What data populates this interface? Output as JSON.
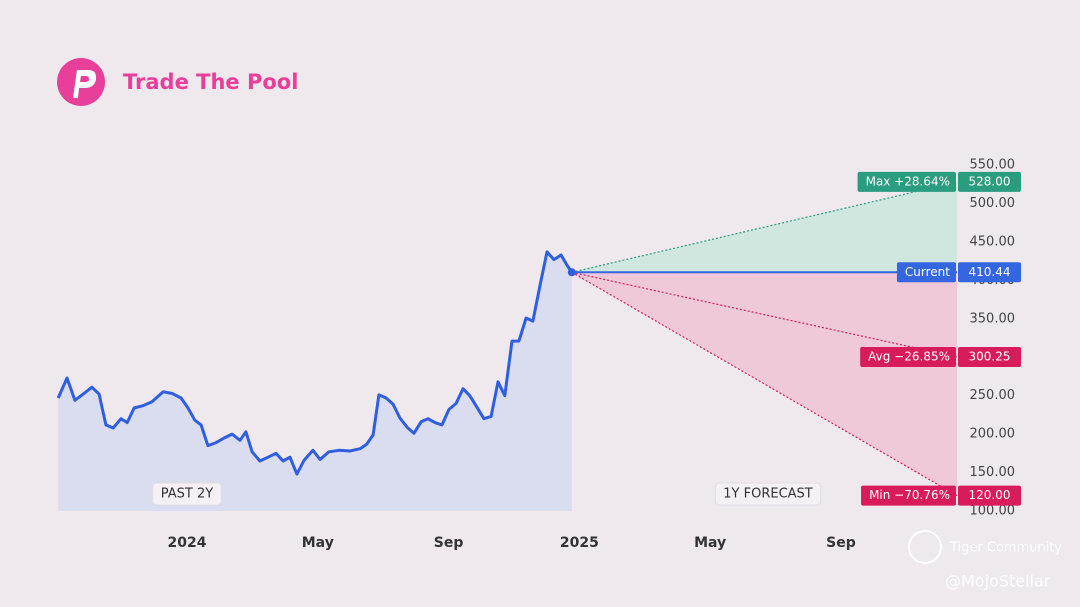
{
  "header": {
    "brand": "Trade The Pool"
  },
  "watermarks": [
    "Tiger Community",
    "@MojoStellar"
  ],
  "chart_data": {
    "type": "line",
    "x": [
      -3.94,
      -3.67,
      -3.43,
      -3.15,
      -2.91,
      -2.69,
      -2.48,
      -2.26,
      -2.02,
      -1.83,
      -1.62,
      -1.35,
      -1.07,
      -0.73,
      -0.46,
      -0.18,
      0.03,
      0.24,
      0.43,
      0.64,
      0.89,
      1.13,
      1.38,
      1.62,
      1.8,
      1.99,
      2.23,
      2.48,
      2.72,
      2.94,
      3.15,
      3.36,
      3.58,
      3.85,
      4.07,
      4.34,
      4.65,
      4.98,
      5.29,
      5.5,
      5.69,
      5.87,
      6.09,
      6.3,
      6.51,
      6.73,
      6.94,
      7.16,
      7.37,
      7.58,
      7.8,
      8.01,
      8.23,
      8.44,
      8.65,
      8.84,
      9.08,
      9.3,
      9.51,
      9.72,
      9.94,
      10.15,
      10.37,
      10.58,
      10.8,
      11.01,
      11.22,
      11.44,
      11.62,
      11.77
    ],
    "values": [
      247,
      273,
      244,
      253,
      261,
      252,
      212,
      208,
      220,
      215,
      234,
      237,
      242,
      255,
      253,
      247,
      234,
      218,
      212,
      185,
      189,
      195,
      200,
      192,
      203,
      177,
      165,
      170,
      175,
      165,
      170,
      148,
      166,
      179,
      167,
      177,
      179,
      178,
      181,
      187,
      199,
      251,
      247,
      239,
      221,
      209,
      201,
      216,
      220,
      215,
      212,
      232,
      240,
      259,
      250,
      237,
      220,
      223,
      268,
      250,
      321,
      321,
      351,
      347,
      394,
      437,
      427,
      433,
      420,
      410.44
    ],
    "color": "#2f5fe0",
    "area_color": "#dadcf0",
    "xlim": [
      -5.72,
      23.55
    ],
    "xticks": [
      {
        "value": 0,
        "label": "2024"
      },
      {
        "value": 4,
        "label": "May"
      },
      {
        "value": 8,
        "label": "Sep"
      },
      {
        "value": 12,
        "label": "2025"
      },
      {
        "value": 16,
        "label": "May"
      },
      {
        "value": 20,
        "label": "Sep"
      }
    ],
    "ylim": [
      100,
      550
    ],
    "yticks": [
      {
        "value": 100,
        "label": "100.00"
      },
      {
        "value": 150,
        "label": "150.00"
      },
      {
        "value": 200,
        "label": "200.00"
      },
      {
        "value": 250,
        "label": "250.00"
      },
      {
        "value": 300,
        "label": "300.00"
      },
      {
        "value": 350,
        "label": "350.00"
      },
      {
        "value": 400,
        "label": "400.00"
      },
      {
        "value": 450,
        "label": "450.00"
      },
      {
        "value": 500,
        "label": "500.00"
      },
      {
        "value": 550,
        "label": "550.00"
      }
    ],
    "annotations": [
      "PAST 2Y",
      "1Y FORECAST"
    ],
    "forecast": {
      "x_end": 23.55,
      "current": {
        "name": "Current",
        "value": 410.44,
        "color": "#3366e0"
      },
      "targets": [
        {
          "name": "Max +28.64%",
          "value": 528,
          "value_label": "528.00",
          "color": "#2a9d7f",
          "fill": "#cfe7df"
        },
        {
          "name": "Avg −26.85%",
          "value": 300.25,
          "value_label": "300.25",
          "color": "#d81b5a"
        },
        {
          "name": "Min −70.76%",
          "value": 120,
          "value_label": "120.00",
          "color": "#d81b5a",
          "fill": "#efc9d8"
        }
      ]
    }
  }
}
